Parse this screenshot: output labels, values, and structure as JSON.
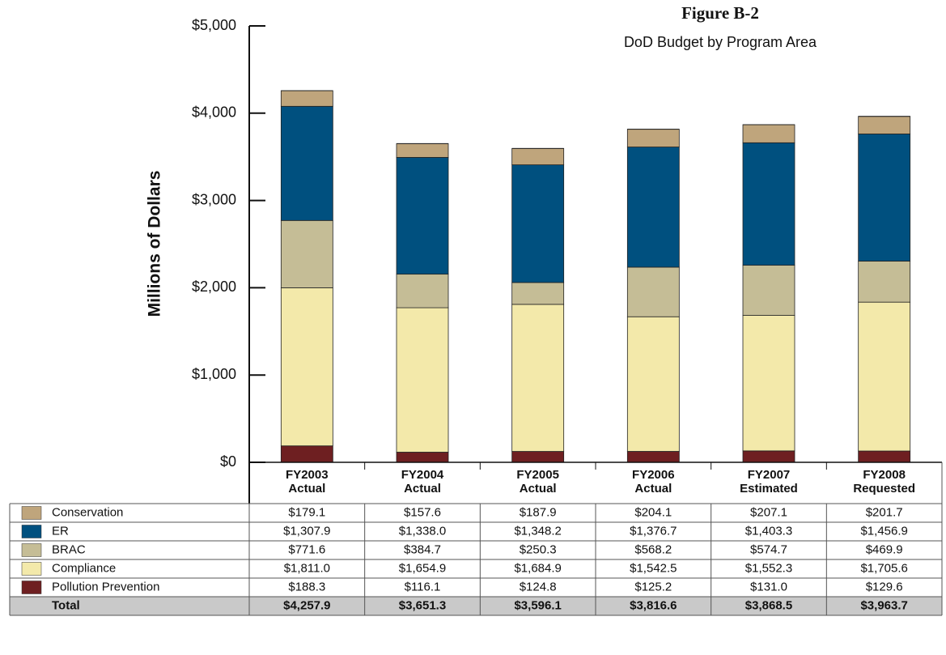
{
  "chart_data": {
    "type": "bar",
    "stacked": true,
    "title": "Figure B-2",
    "subtitle": "DoD Budget by Program Area",
    "y_label": "Millions of Dollars",
    "categories": [
      "FY2003\nActual",
      "FY2004\nActual",
      "FY2005\nActual",
      "FY2006\nActual",
      "FY2007\nEstimated",
      "FY2008\nRequested"
    ],
    "ylim": [
      0,
      5000
    ],
    "yticks": [
      {
        "value": 0,
        "label": "$0"
      },
      {
        "value": 1000,
        "label": "$1,000"
      },
      {
        "value": 2000,
        "label": "$2,000"
      },
      {
        "value": 3000,
        "label": "$3,000"
      },
      {
        "value": 4000,
        "label": "$4,000"
      },
      {
        "value": 5000,
        "label": "$5,000"
      }
    ],
    "series": [
      {
        "name": "Conservation",
        "color": "#bfa57c",
        "values": [
          179.1,
          157.6,
          187.9,
          204.1,
          207.1,
          201.7
        ],
        "value_labels": [
          "$179.1",
          "$157.6",
          "$187.9",
          "$204.1",
          "$207.1",
          "$201.7"
        ]
      },
      {
        "name": "ER",
        "color": "#00507f",
        "values": [
          1307.9,
          1338.0,
          1348.2,
          1376.7,
          1403.3,
          1456.9
        ],
        "value_labels": [
          "$1,307.9",
          "$1,338.0",
          "$1,348.2",
          "$1,376.7",
          "$1,403.3",
          "$1,456.9"
        ]
      },
      {
        "name": "BRAC",
        "color": "#c5bd96",
        "values": [
          771.6,
          384.7,
          250.3,
          568.2,
          574.7,
          469.9
        ],
        "value_labels": [
          "$771.6",
          "$384.7",
          "$250.3",
          "$568.2",
          "$574.7",
          "$469.9"
        ]
      },
      {
        "name": "Compliance",
        "color": "#f3e9aa",
        "values": [
          1811.0,
          1654.9,
          1684.9,
          1542.5,
          1552.3,
          1705.6
        ],
        "value_labels": [
          "$1,811.0",
          "$1,654.9",
          "$1,684.9",
          "$1,542.5",
          "$1,552.3",
          "$1,705.6"
        ]
      },
      {
        "name": "Pollution Prevention",
        "color": "#6e1f21",
        "values": [
          188.3,
          116.1,
          124.8,
          125.2,
          131.0,
          129.6
        ],
        "value_labels": [
          "$188.3",
          "$116.1",
          "$124.8",
          "$125.2",
          "$131.0",
          "$129.6"
        ]
      }
    ],
    "totals": {
      "name": "Total",
      "values": [
        4257.9,
        3651.3,
        3596.1,
        3816.6,
        3868.5,
        3963.7
      ],
      "value_labels": [
        "$4,257.9",
        "$3,651.3",
        "$3,596.1",
        "$3,816.6",
        "$3,868.5",
        "$3,963.7"
      ]
    }
  }
}
